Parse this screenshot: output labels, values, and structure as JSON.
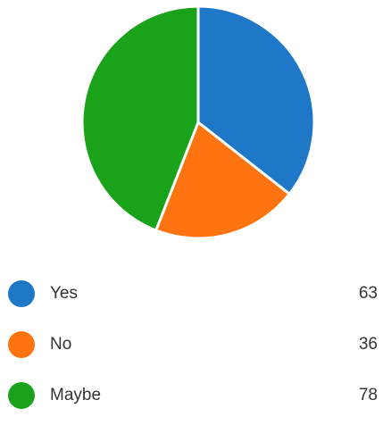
{
  "chart_data": {
    "type": "pie",
    "categories": [
      "Yes",
      "No",
      "Maybe"
    ],
    "values": [
      63,
      36,
      78
    ],
    "colors": [
      "#1f77c8",
      "#ff7411",
      "#1aa31a"
    ],
    "title": "",
    "legend_position": "bottom",
    "start_angle_deg": 0,
    "direction": "clockwise"
  }
}
